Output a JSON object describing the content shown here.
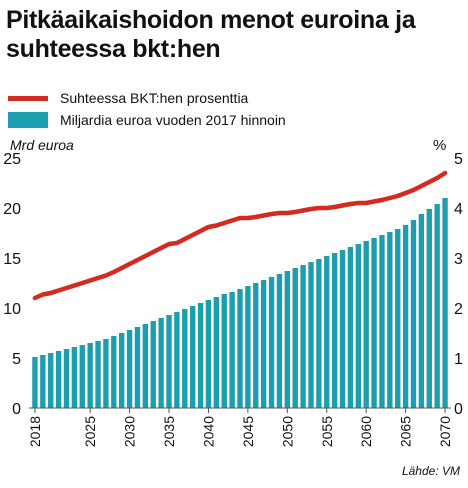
{
  "title": "Pitkäaikaishoidon menot euroina ja suhteessa bkt:hen",
  "source": "Lähde: VM",
  "colors": {
    "line": "#d42a20",
    "bars": "#1d9db0",
    "axis": "#555555",
    "grid": "#bbbbbb"
  },
  "chart_data": {
    "type": "bar+line",
    "title": "Pitkäaikaishoidon menot euroina ja suhteessa bkt:hen",
    "legend_placement": "top",
    "grid": false,
    "x": {
      "start": 2018,
      "end": 2070,
      "ticks": [
        "2018",
        "2025",
        "2030",
        "2035",
        "2040",
        "2045",
        "2050",
        "2055",
        "2060",
        "2065",
        "2070"
      ]
    },
    "y_left": {
      "label": "Mrd euroa",
      "range": [
        0,
        25
      ],
      "ticks": [
        "0",
        "5",
        "10",
        "15",
        "20",
        "25"
      ]
    },
    "y_right": {
      "label": "%",
      "range": [
        0,
        5
      ],
      "ticks": [
        "0",
        "1",
        "2",
        "3",
        "4",
        "5"
      ]
    },
    "series": [
      {
        "name": "Suhteessa BKT:hen prosenttia",
        "type": "line",
        "axis": "right",
        "x": [
          2018,
          2019,
          2020,
          2021,
          2022,
          2023,
          2024,
          2025,
          2026,
          2027,
          2028,
          2029,
          2030,
          2031,
          2032,
          2033,
          2034,
          2035,
          2036,
          2037,
          2038,
          2039,
          2040,
          2041,
          2042,
          2043,
          2044,
          2045,
          2046,
          2047,
          2048,
          2049,
          2050,
          2051,
          2052,
          2053,
          2054,
          2055,
          2056,
          2057,
          2058,
          2059,
          2060,
          2061,
          2062,
          2063,
          2064,
          2065,
          2066,
          2067,
          2068,
          2069,
          2070
        ],
        "values": [
          2.2,
          2.27,
          2.3,
          2.35,
          2.4,
          2.45,
          2.5,
          2.55,
          2.6,
          2.65,
          2.72,
          2.8,
          2.88,
          2.96,
          3.04,
          3.12,
          3.2,
          3.28,
          3.3,
          3.38,
          3.46,
          3.54,
          3.62,
          3.65,
          3.7,
          3.75,
          3.8,
          3.8,
          3.82,
          3.85,
          3.88,
          3.9,
          3.9,
          3.92,
          3.95,
          3.98,
          4.0,
          4.0,
          4.02,
          4.05,
          4.08,
          4.1,
          4.1,
          4.13,
          4.16,
          4.2,
          4.24,
          4.3,
          4.36,
          4.44,
          4.52,
          4.6,
          4.7
        ]
      },
      {
        "name": "Miljardia euroa vuoden 2017 hinnoin",
        "type": "bar",
        "axis": "left",
        "x": [
          2018,
          2019,
          2020,
          2021,
          2022,
          2023,
          2024,
          2025,
          2026,
          2027,
          2028,
          2029,
          2030,
          2031,
          2032,
          2033,
          2034,
          2035,
          2036,
          2037,
          2038,
          2039,
          2040,
          2041,
          2042,
          2043,
          2044,
          2045,
          2046,
          2047,
          2048,
          2049,
          2050,
          2051,
          2052,
          2053,
          2054,
          2055,
          2056,
          2057,
          2058,
          2059,
          2060,
          2061,
          2062,
          2063,
          2064,
          2065,
          2066,
          2067,
          2068,
          2069,
          2070
        ],
        "values": [
          5.1,
          5.3,
          5.5,
          5.7,
          5.9,
          6.1,
          6.3,
          6.5,
          6.7,
          6.9,
          7.2,
          7.5,
          7.8,
          8.1,
          8.4,
          8.7,
          9.0,
          9.3,
          9.6,
          9.9,
          10.2,
          10.5,
          10.8,
          11.1,
          11.4,
          11.6,
          11.9,
          12.2,
          12.5,
          12.8,
          13.1,
          13.4,
          13.7,
          14.0,
          14.3,
          14.6,
          14.9,
          15.2,
          15.5,
          15.8,
          16.1,
          16.4,
          16.7,
          17.0,
          17.3,
          17.6,
          17.9,
          18.3,
          18.8,
          19.4,
          19.9,
          20.4,
          21.0
        ]
      }
    ]
  }
}
